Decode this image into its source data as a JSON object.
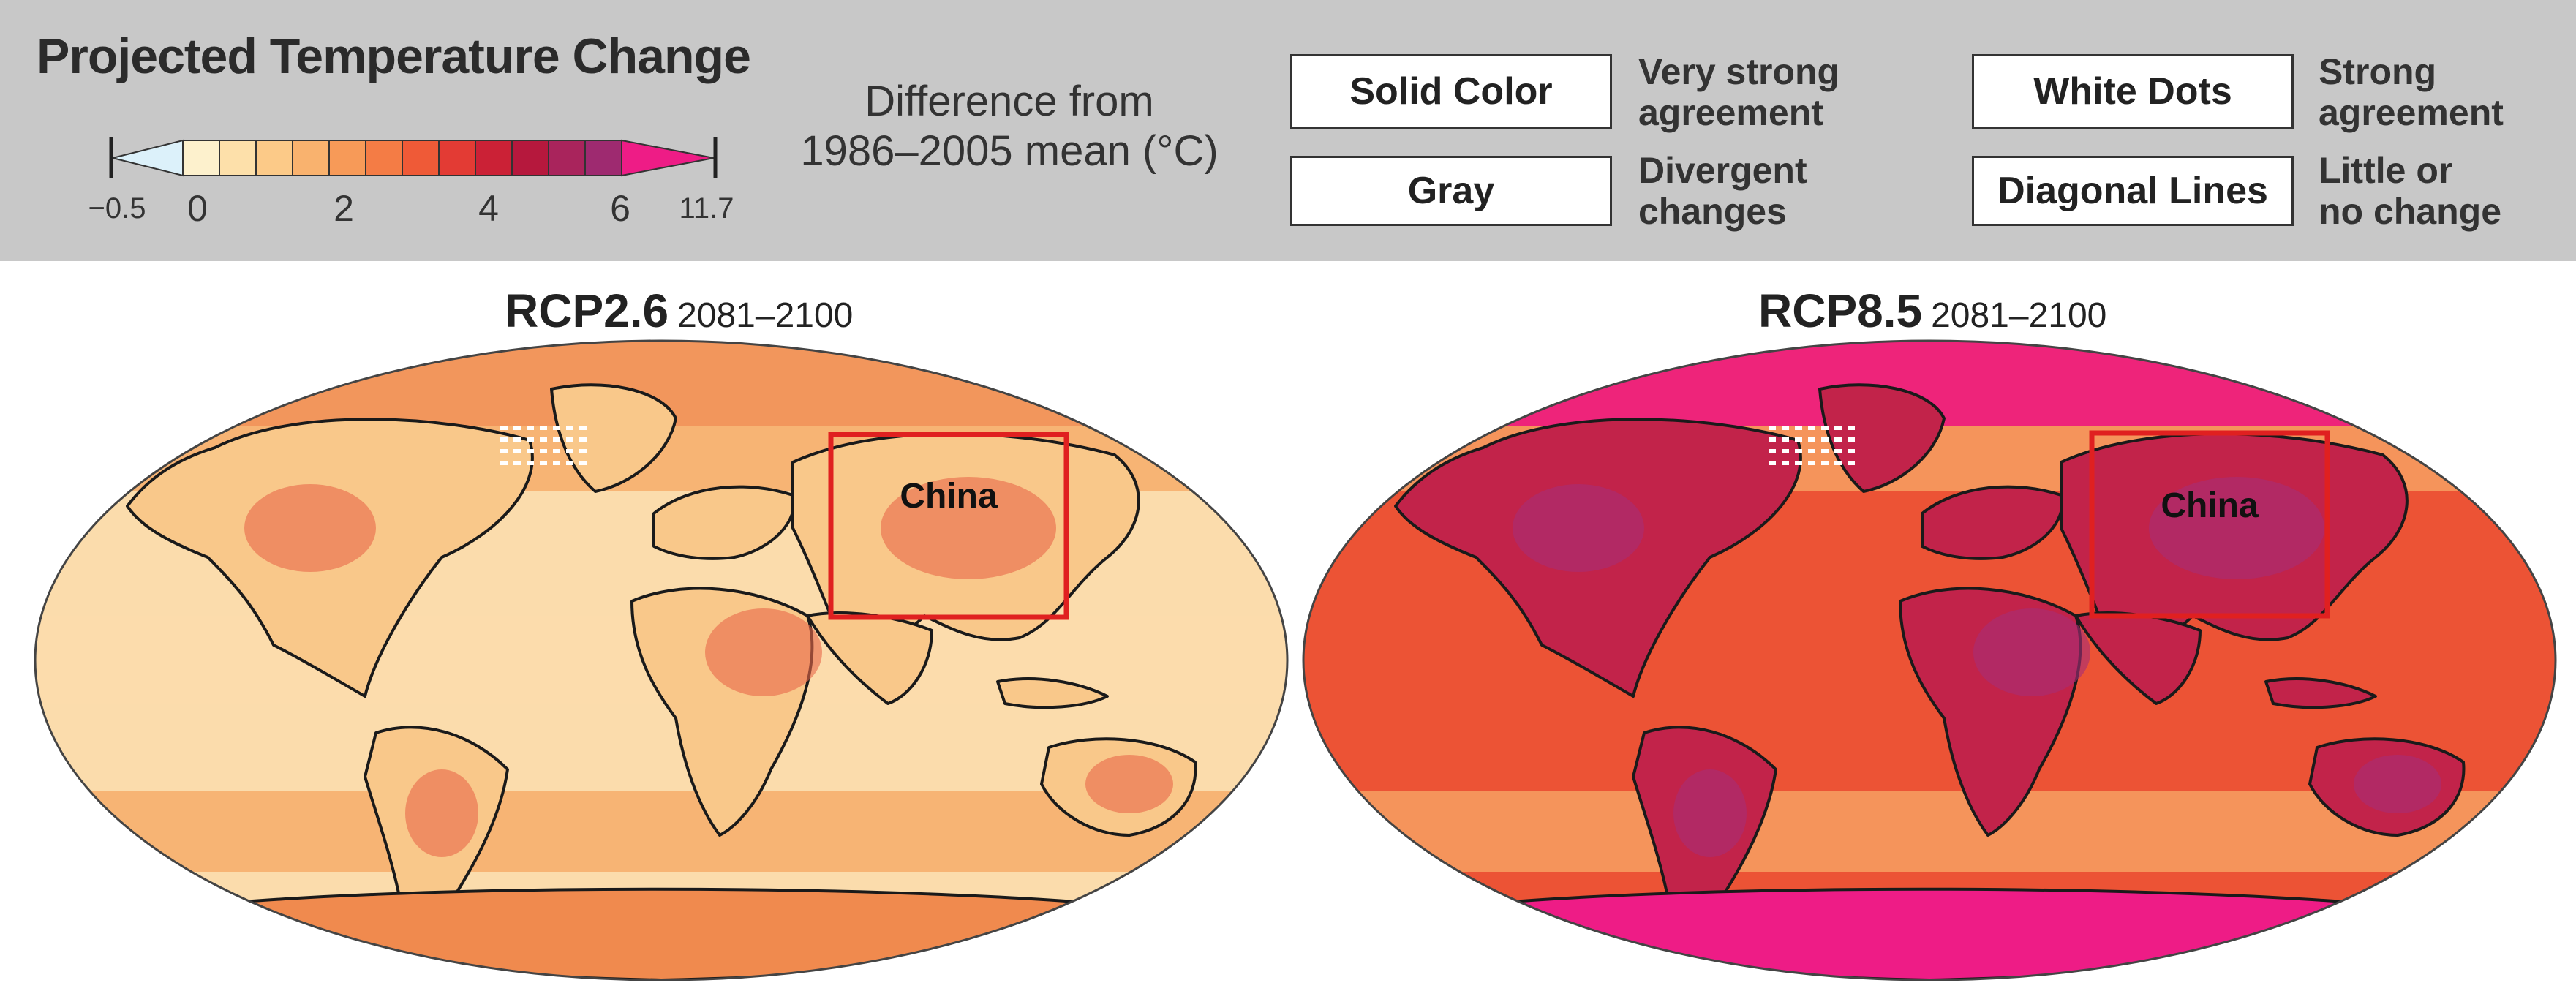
{
  "legend": {
    "title": "Projected Temperature Change",
    "difference_line1": "Difference from",
    "difference_line2": "1986–2005 mean (°C)",
    "scale_labels": [
      "−0.5",
      "0",
      "2",
      "4",
      "6",
      "11.7"
    ],
    "scale_colors": [
      "#dcf1fa",
      "#fdf1cd",
      "#fde0aa",
      "#fcca88",
      "#f9b26e",
      "#f79a58",
      "#f47c45",
      "#ef5a37",
      "#e33b34",
      "#cb2136",
      "#b6183d",
      "#a9245c",
      "#9e2a70",
      "#ee1c86"
    ],
    "agreement": [
      {
        "box": "Solid Color",
        "desc1": "Very strong",
        "desc2": "agreement"
      },
      {
        "box": "Gray",
        "desc1": "Divergent",
        "desc2": "changes"
      },
      {
        "box": "White Dots",
        "desc1": "Strong",
        "desc2": "agreement"
      },
      {
        "box": "Diagonal Lines",
        "desc1": "Little or",
        "desc2": "no change"
      }
    ]
  },
  "maps": [
    {
      "scenario": "RCP2.6",
      "period": "2081–2100",
      "highlight_label": "China",
      "palette": {
        "ocean": "#fbdcac",
        "land": "#f9c88a",
        "warm": "#f6ad6a",
        "pole": "#f08a4e",
        "hot": "#e8674a",
        "lines": "#9b8c84"
      }
    },
    {
      "scenario": "RCP8.5",
      "period": "2081–2100",
      "highlight_label": "China",
      "palette": {
        "ocean": "#ec5335",
        "land": "#c2234a",
        "warm": "#f7a061",
        "pole": "#ee1c86",
        "hot": "#a62d76",
        "lines": "#d8203a"
      }
    }
  ],
  "colors": {
    "highlight_box": "#e02020",
    "panel": "#c8c8c8",
    "coast": "#1a1a1a"
  }
}
